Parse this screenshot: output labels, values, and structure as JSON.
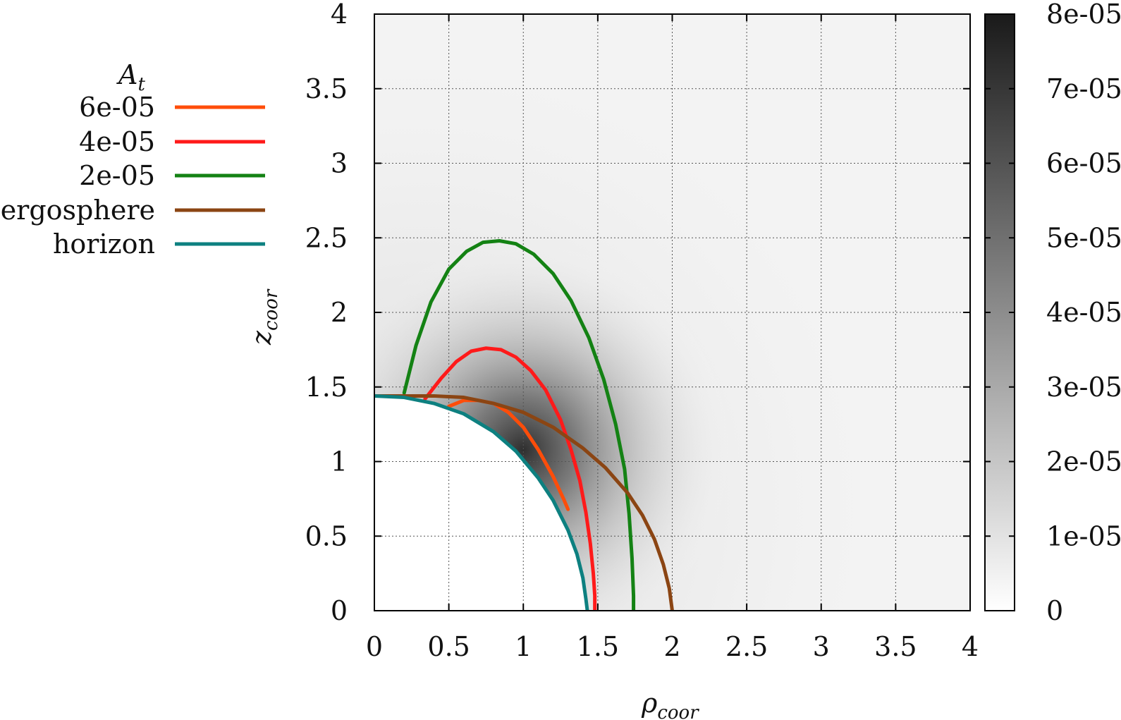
{
  "chart_data": {
    "type": "heatmap",
    "title": "",
    "xlabel": {
      "symbol": "ρ",
      "subscript": "coor"
    },
    "ylabel": {
      "symbol": "z",
      "subscript": "coor"
    },
    "xlim": [
      0,
      4
    ],
    "ylim": [
      0,
      4
    ],
    "grid": true,
    "x_ticks": [
      "0",
      "0.5",
      "1",
      "1.5",
      "2",
      "2.5",
      "3",
      "3.5",
      "4"
    ],
    "y_ticks": [
      "0",
      "0.5",
      "1",
      "1.5",
      "2",
      "2.5",
      "3",
      "3.5",
      "4"
    ],
    "colorbar": {
      "range": [
        0,
        8e-05
      ],
      "colors": [
        "#ffffff",
        "#1a1a1a"
      ],
      "ticks": [
        "0",
        "1e-05",
        "2e-05",
        "3e-05",
        "4e-05",
        "5e-05",
        "6e-05",
        "7e-05",
        "8e-05"
      ]
    },
    "legend": {
      "title_symbol": "A",
      "title_subscript": "t",
      "placement": "left"
    },
    "series": [
      {
        "name": "6e-05",
        "color": "#ff4d0a",
        "x": [
          0.5,
          0.6,
          0.7,
          0.8,
          0.9,
          1.0,
          1.1,
          1.2,
          1.27,
          1.3
        ],
        "y": [
          1.37,
          1.41,
          1.41,
          1.39,
          1.33,
          1.23,
          1.08,
          0.9,
          0.75,
          0.68
        ]
      },
      {
        "name": "4e-05",
        "color": "#ff1a1a",
        "x": [
          0.34,
          0.45,
          0.55,
          0.65,
          0.75,
          0.85,
          0.95,
          1.05,
          1.15,
          1.25,
          1.32,
          1.38,
          1.42,
          1.45,
          1.47,
          1.48,
          1.48
        ],
        "y": [
          1.42,
          1.56,
          1.67,
          1.74,
          1.76,
          1.75,
          1.7,
          1.61,
          1.48,
          1.28,
          1.08,
          0.87,
          0.66,
          0.45,
          0.25,
          0.1,
          0.0
        ]
      },
      {
        "name": "2e-05",
        "color": "#148214",
        "x": [
          0.2,
          0.28,
          0.38,
          0.5,
          0.62,
          0.73,
          0.84,
          0.95,
          1.07,
          1.2,
          1.32,
          1.44,
          1.54,
          1.62,
          1.68,
          1.71,
          1.73,
          1.74,
          1.74
        ],
        "y": [
          1.46,
          1.78,
          2.07,
          2.29,
          2.41,
          2.47,
          2.48,
          2.46,
          2.39,
          2.26,
          2.08,
          1.83,
          1.55,
          1.25,
          0.95,
          0.65,
          0.35,
          0.1,
          0.0
        ]
      },
      {
        "name": "ergosphere",
        "color": "#8b4513",
        "x": [
          0.0,
          0.2,
          0.4,
          0.6,
          0.8,
          1.0,
          1.2,
          1.4,
          1.55,
          1.7,
          1.8,
          1.88,
          1.94,
          1.98,
          2.0
        ],
        "y": [
          1.44,
          1.44,
          1.44,
          1.43,
          1.39,
          1.33,
          1.23,
          1.09,
          0.96,
          0.79,
          0.64,
          0.48,
          0.31,
          0.15,
          0.0
        ]
      },
      {
        "name": "horizon",
        "color": "#0d8080",
        "x": [
          0.0,
          0.2,
          0.4,
          0.6,
          0.8,
          0.95,
          1.1,
          1.2,
          1.3,
          1.36,
          1.4,
          1.42,
          1.43
        ],
        "y": [
          1.44,
          1.43,
          1.39,
          1.32,
          1.2,
          1.07,
          0.89,
          0.74,
          0.54,
          0.38,
          0.22,
          0.08,
          0.0
        ]
      }
    ]
  }
}
